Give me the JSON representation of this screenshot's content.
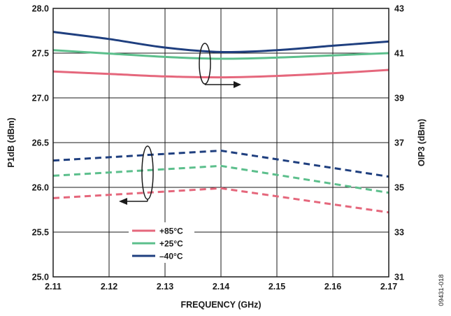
{
  "chart_data": {
    "type": "line",
    "xlabel": "FREQUENCY (GHz)",
    "ylabel": "P1dB (dBm)",
    "y2label": "OIP3 (dBm)",
    "xlim": [
      2.11,
      2.17
    ],
    "ylim": [
      25.0,
      28.0
    ],
    "y2lim": [
      31,
      43
    ],
    "x_ticks": [
      "2.11",
      "2.12",
      "2.13",
      "2.14",
      "2.15",
      "2.16",
      "2.17"
    ],
    "y_ticks": [
      "25.0",
      "25.5",
      "26.0",
      "26.5",
      "27.0",
      "27.5",
      "28.0"
    ],
    "y2_ticks": [
      "31",
      "33",
      "35",
      "37",
      "39",
      "41",
      "43"
    ],
    "grid": true,
    "legend": {
      "position": "bottom-left",
      "entries": [
        {
          "label": "+85°C",
          "color": "#e5677c"
        },
        {
          "label": "+25°C",
          "color": "#5cbf8c"
        },
        {
          "label": "–40°C",
          "color": "#1f3f7f"
        }
      ]
    },
    "series": [
      {
        "name": "+85°C",
        "metric": "P1dB",
        "axis": "left",
        "style": "dashed",
        "color": "#e5677c",
        "x": [
          2.11,
          2.14,
          2.17
        ],
        "y": [
          25.88,
          25.99,
          25.72
        ]
      },
      {
        "name": "+25°C",
        "metric": "P1dB",
        "axis": "left",
        "style": "dashed",
        "color": "#5cbf8c",
        "x": [
          2.11,
          2.14,
          2.17
        ],
        "y": [
          26.13,
          26.24,
          25.94
        ]
      },
      {
        "name": "–40°C",
        "metric": "P1dB",
        "axis": "left",
        "style": "dashed",
        "color": "#1f3f7f",
        "x": [
          2.11,
          2.14,
          2.17
        ],
        "y": [
          26.3,
          26.41,
          26.12
        ]
      },
      {
        "name": "+85°C",
        "metric": "OIP3",
        "axis": "right",
        "style": "solid",
        "color": "#e5677c",
        "x": [
          2.11,
          2.12,
          2.13,
          2.14,
          2.15,
          2.16,
          2.17
        ],
        "y": [
          40.18,
          40.07,
          39.96,
          39.92,
          39.98,
          40.1,
          40.25
        ]
      },
      {
        "name": "+25°C",
        "metric": "OIP3",
        "axis": "right",
        "style": "solid",
        "color": "#5cbf8c",
        "x": [
          2.11,
          2.12,
          2.13,
          2.14,
          2.15,
          2.16,
          2.17
        ],
        "y": [
          41.13,
          40.98,
          40.83,
          40.75,
          40.8,
          40.9,
          41.0
        ]
      },
      {
        "name": "–40°C",
        "metric": "OIP3",
        "axis": "right",
        "style": "solid",
        "color": "#1f3f7f",
        "x": [
          2.11,
          2.12,
          2.13,
          2.14,
          2.15,
          2.16,
          2.17
        ],
        "y": [
          41.95,
          41.63,
          41.25,
          41.05,
          41.13,
          41.33,
          41.52
        ]
      }
    ],
    "figure_id": "09431-018"
  }
}
